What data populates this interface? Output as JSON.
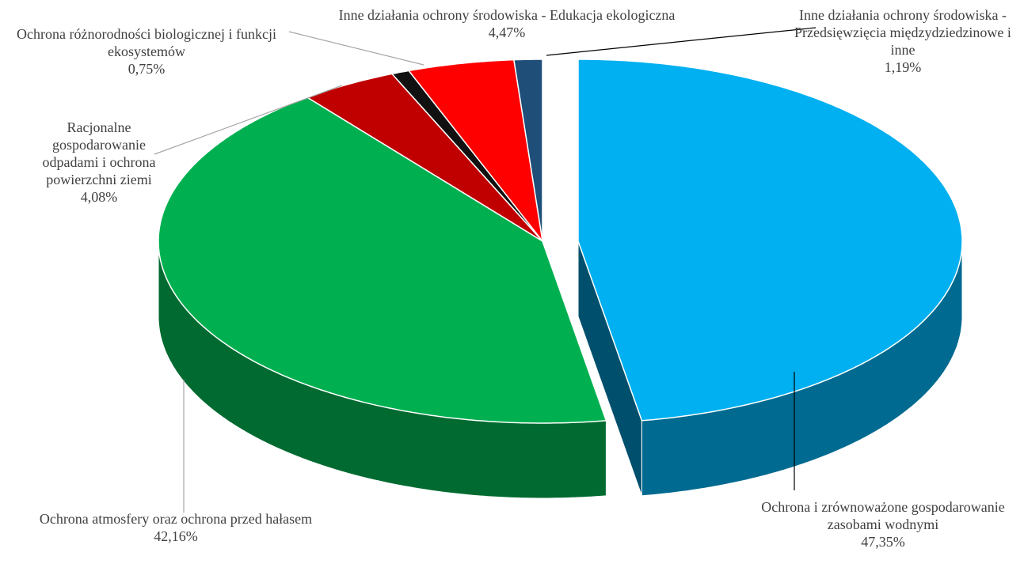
{
  "chart_data": {
    "type": "pie",
    "categories": [
      "Ochrona i zrównoważone gospodarowanie zasobami wodnymi",
      "Ochrona atmosfery oraz ochrona przed hałasem",
      "Racjonalne gospodarowanie odpadami i ochrona powierzchni ziemi",
      "Ochrona różnorodności biologicznej i funkcji ekosystemów",
      "Inne działania ochrony środowiska - Edukacja ekologiczna",
      "Inne działania ochrony środowiska - Przedsięwzięcia międzydziedzinowe i inne"
    ],
    "values": [
      47.35,
      42.16,
      4.08,
      0.75,
      4.47,
      1.19
    ],
    "value_labels": [
      "47,35%",
      "42,16%",
      "4,08%",
      "0,75%",
      "4,47%",
      "1,19%"
    ],
    "colors": [
      "#00b0f0",
      "#00b050",
      "#c00000",
      "#111111",
      "#ff0000",
      "#1f4e79"
    ]
  }
}
